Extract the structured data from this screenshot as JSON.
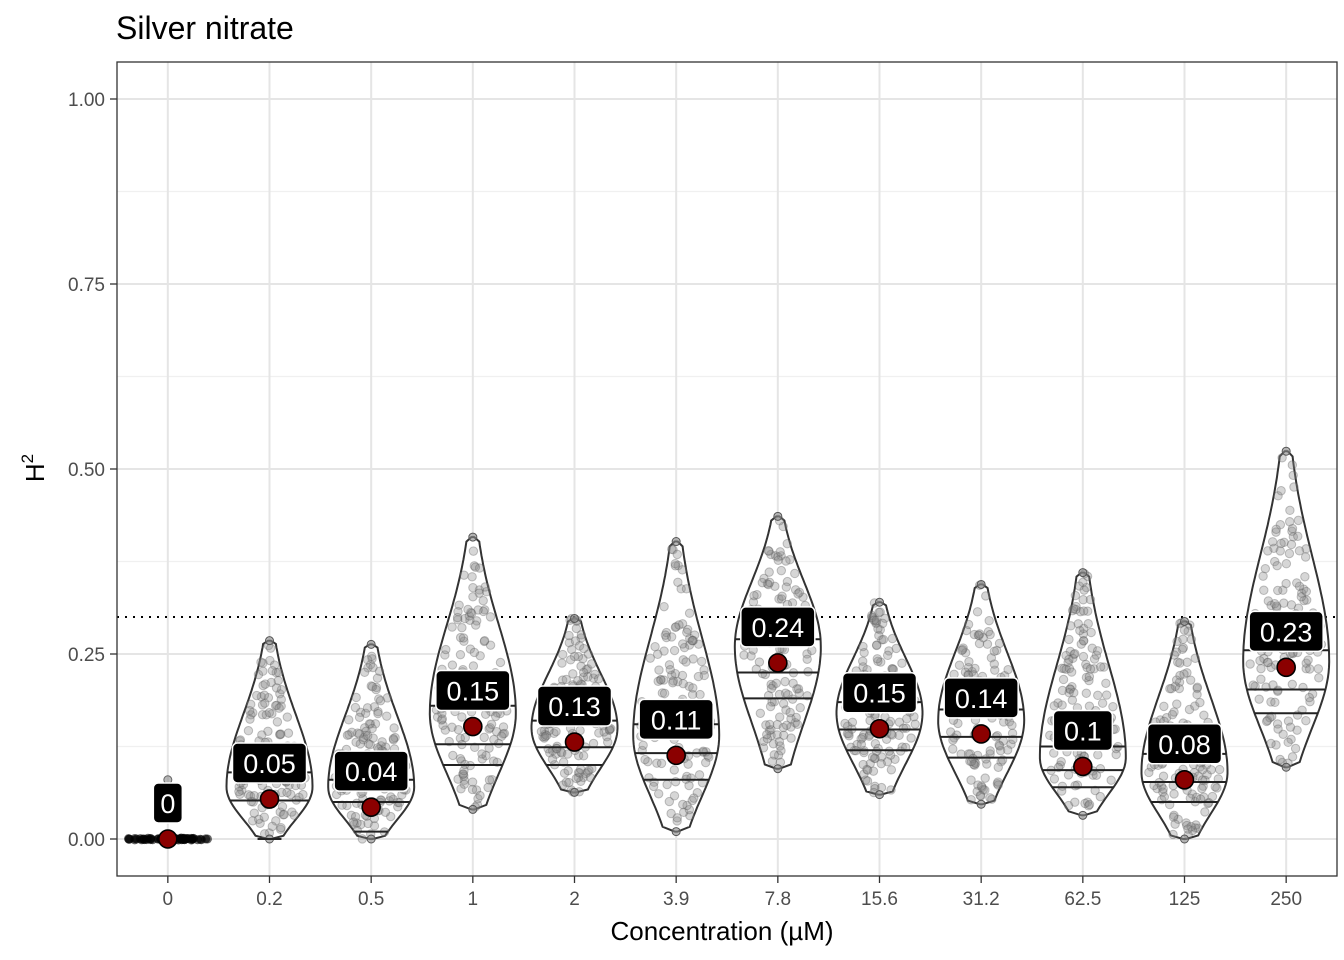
{
  "chart_data": {
    "type": "violin",
    "title": "Silver nitrate",
    "xlabel": "Concentration (µM)",
    "ylabel": "H",
    "ylabel_superscript": "2",
    "ylim": [
      -0.05,
      1.05
    ],
    "yticks": [
      0.0,
      0.25,
      0.5,
      0.75,
      1.0
    ],
    "ytick_labels": [
      "0.00",
      "0.25",
      "0.50",
      "0.75",
      "1.00"
    ],
    "threshold_line": 0.3,
    "grid": true,
    "categories": [
      "0",
      "0.2",
      "0.5",
      "1",
      "2",
      "3.9",
      "7.8",
      "15.6",
      "31.2",
      "62.5",
      "125",
      "250"
    ],
    "mean_labels": [
      "0",
      "0.05",
      "0.04",
      "0.15",
      "0.13",
      "0.11",
      "0.24",
      "0.15",
      "0.14",
      "0.1",
      "0.08",
      "0.23"
    ],
    "means": [
      0.0,
      0.054,
      0.043,
      0.152,
      0.131,
      0.113,
      0.238,
      0.149,
      0.142,
      0.098,
      0.08,
      0.232
    ],
    "medians": [
      0.0,
      0.052,
      0.05,
      0.128,
      0.124,
      0.116,
      0.225,
      0.148,
      0.138,
      0.093,
      0.077,
      0.202
    ],
    "q1": [
      0.0,
      0.0,
      0.01,
      0.1,
      0.1,
      0.08,
      0.19,
      0.12,
      0.11,
      0.07,
      0.05,
      0.17
    ],
    "q3": [
      0.0,
      0.09,
      0.08,
      0.18,
      0.16,
      0.155,
      0.27,
      0.185,
      0.175,
      0.125,
      0.115,
      0.255
    ],
    "mins": [
      0.0,
      0.0,
      0.0,
      0.04,
      0.063,
      0.01,
      0.095,
      0.06,
      0.047,
      0.032,
      0.0,
      0.097
    ],
    "maxs": [
      0.0,
      0.268,
      0.263,
      0.408,
      0.298,
      0.402,
      0.436,
      0.32,
      0.344,
      0.36,
      0.294,
      0.524
    ],
    "modes": [
      0.0,
      0.07,
      0.07,
      0.17,
      0.15,
      0.14,
      0.26,
      0.17,
      0.16,
      0.11,
      0.09,
      0.24
    ],
    "point_color": "#8b0000",
    "violin_line_color": "#333333",
    "jitter_color": "#8a8a8a"
  }
}
